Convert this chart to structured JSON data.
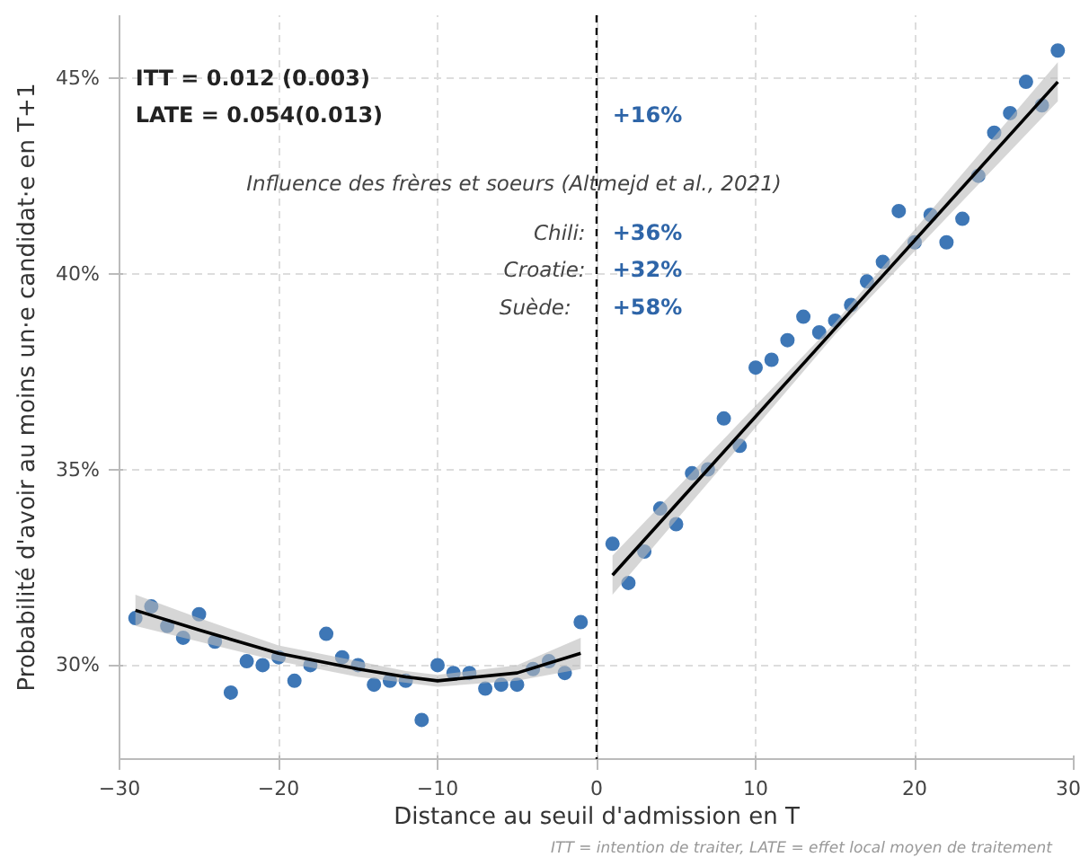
{
  "chart_data": {
    "type": "scatter",
    "xlabel": "Distance au seuil d'admission en T",
    "ylabel": "Probabilité d'avoir au moins un·e candidat·e en T+1",
    "annotations": [
      "ITT = 0.012 (0.003)",
      "LATE = 0.054(0.013)",
      "+16%",
      "Influence des frères et soeurs (Altmejd et al., 2021)",
      "Chili:",
      "+36%",
      "Croatie:",
      "+32%",
      "Suède:",
      "+58%",
      "ITT = intention de traiter, LATE = effet local moyen de traitement"
    ],
    "series": [
      {
        "color": "#3e77b6",
        "x": [
          -29,
          -28,
          -27,
          -26,
          -25,
          -24,
          -23,
          -22,
          -21,
          -20,
          -19,
          -18,
          -17,
          -16,
          -15,
          -14,
          -13,
          -12,
          -11,
          -10,
          -9,
          -8,
          -7,
          -6,
          -5,
          -4,
          -3,
          -2,
          -1
        ],
        "values": [
          31.2,
          31.5,
          31.0,
          30.7,
          31.3,
          30.6,
          29.3,
          30.1,
          30.0,
          30.2,
          29.6,
          30.0,
          30.8,
          30.2,
          30.0,
          29.5,
          29.6,
          29.6,
          28.6,
          30.0,
          29.8,
          29.8,
          29.4,
          29.5,
          29.5,
          29.9,
          30.1,
          29.8,
          31.1
        ]
      },
      {
        "color": "#3e77b6",
        "x": [
          1,
          2,
          3,
          4,
          5,
          6,
          7,
          8,
          9,
          10,
          11,
          12,
          13,
          14,
          15,
          16,
          17,
          18,
          19,
          20,
          21,
          22,
          23,
          24,
          25,
          26,
          27,
          28,
          29
        ],
        "values": [
          33.1,
          32.1,
          32.9,
          34.0,
          33.6,
          34.9,
          35.0,
          36.3,
          35.6,
          37.6,
          37.8,
          38.3,
          38.9,
          38.5,
          38.8,
          39.2,
          39.8,
          40.3,
          41.6,
          40.8,
          41.5,
          40.8,
          41.4,
          42.5,
          43.6,
          44.1,
          44.9,
          44.3,
          45.7
        ]
      },
      {
        "type": "line",
        "marker": "none",
        "color": "#000000",
        "x": [
          -29,
          -25,
          -20,
          -15,
          -12,
          -10,
          -5,
          -1
        ],
        "values": [
          31.4,
          30.9,
          30.3,
          29.9,
          29.7,
          29.6,
          29.8,
          30.3
        ],
        "lower": [
          31.0,
          30.6,
          30.1,
          29.7,
          29.55,
          29.45,
          29.6,
          29.9
        ],
        "upper": [
          31.8,
          31.2,
          30.5,
          30.1,
          29.85,
          29.75,
          30.0,
          30.7
        ]
      },
      {
        "type": "line",
        "marker": "none",
        "color": "#000000",
        "x": [
          1,
          15,
          29
        ],
        "values": [
          32.3,
          38.6,
          44.9
        ],
        "lower": [
          31.8,
          38.45,
          44.4
        ],
        "upper": [
          32.8,
          38.75,
          45.4
        ]
      }
    ],
    "xlim": [
      -30,
      30
    ],
    "ylim": [
      27.6,
      46.6
    ],
    "xticks": [
      {
        "value": -30,
        "label": "−30"
      },
      {
        "value": -20,
        "label": "−20"
      },
      {
        "value": -10,
        "label": "−10"
      },
      0,
      10,
      20,
      30
    ],
    "yticks": [
      {
        "value": 30,
        "label": "30%"
      },
      {
        "value": 35,
        "label": "35%"
      },
      {
        "value": 40,
        "label": "40%"
      },
      {
        "value": 45,
        "label": "45%"
      }
    ],
    "ref_lines": [
      {
        "axis": "x",
        "value": 0,
        "color": "#000000",
        "line_style": "dashed"
      }
    ],
    "grid": true,
    "marker": "circle"
  }
}
